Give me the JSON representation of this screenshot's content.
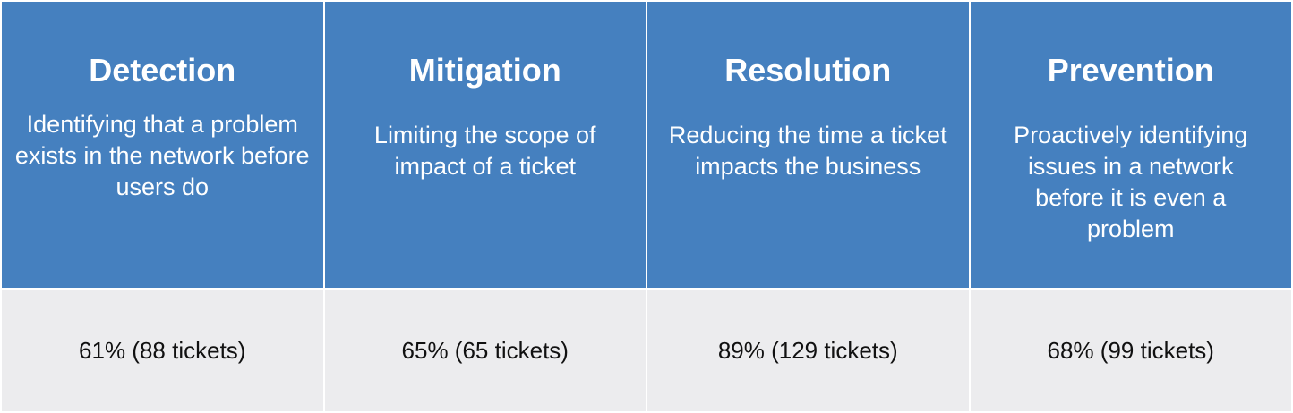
{
  "colors": {
    "header_bg": "#4580bf",
    "body_bg": "#ececee"
  },
  "columns": [
    {
      "title": "Detection",
      "description": "Identifying that a problem exists in the network before users do",
      "value": "61% (88 tickets)"
    },
    {
      "title": "Mitigation",
      "description": "Limiting the scope of impact of a ticket",
      "value": "65% (65 tickets)"
    },
    {
      "title": "Resolution",
      "description": "Reducing the time a ticket impacts the business",
      "value": "89% (129 tickets)"
    },
    {
      "title": "Prevention",
      "description": "Proactively identifying issues in a network before it is even a problem",
      "value": "68% (99 tickets)"
    }
  ]
}
